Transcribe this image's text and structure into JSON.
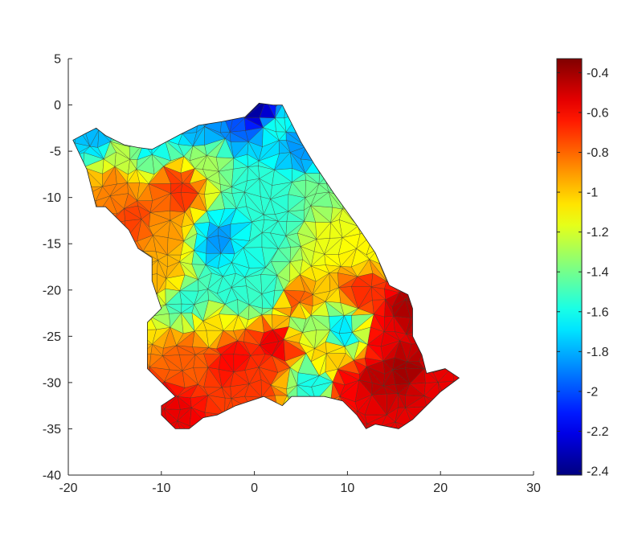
{
  "chart_data": {
    "type": "heatmap",
    "subtype": "triangulated-surface",
    "title": "",
    "xlabel": "",
    "ylabel": "",
    "xlim": [
      -20,
      30
    ],
    "ylim": [
      -40,
      5
    ],
    "x_ticks": [
      -20,
      -10,
      0,
      10,
      20,
      30
    ],
    "y_ticks": [
      5,
      0,
      -5,
      -10,
      -15,
      -20,
      -25,
      -30,
      -35,
      -40
    ],
    "x_tick_labels": [
      "-20",
      "-10",
      "0",
      "10",
      "20",
      "30"
    ],
    "y_tick_labels": [
      "5",
      "0",
      "-5",
      "-10",
      "-15",
      "-20",
      "-25",
      "-30",
      "-35",
      "-40"
    ],
    "grid": false,
    "colormap": "jet",
    "colorbar": {
      "range": [
        -2.42,
        -0.33
      ],
      "ticks": [
        -0.4,
        -0.6,
        -0.8,
        -1,
        -1.2,
        -1.4,
        -1.6,
        -1.8,
        -2,
        -2.2,
        -2.4
      ],
      "tick_labels": [
        "-0.4",
        "-0.6",
        "-0.8",
        "-1",
        "-1.2",
        "-1.4",
        "-1.6",
        "-1.8",
        "-2",
        "-2.2",
        "-2.4"
      ]
    },
    "boundary": [
      [
        -19.5,
        -3.8
      ],
      [
        -18,
        -3
      ],
      [
        -17,
        -2.5
      ],
      [
        -16,
        -3.3
      ],
      [
        -14,
        -4.3
      ],
      [
        -12.5,
        -4.6
      ],
      [
        -11,
        -4.8
      ],
      [
        -8,
        -3.2
      ],
      [
        -6,
        -2.2
      ],
      [
        -3.5,
        -1.8
      ],
      [
        -1,
        -1.3
      ],
      [
        0.5,
        0.2
      ],
      [
        2,
        0
      ],
      [
        3,
        0
      ],
      [
        4,
        -2
      ],
      [
        5,
        -4
      ],
      [
        6.5,
        -6.5
      ],
      [
        8.5,
        -9.5
      ],
      [
        11,
        -13
      ],
      [
        13,
        -16
      ],
      [
        14.5,
        -19.5
      ],
      [
        16.5,
        -20.5
      ],
      [
        17,
        -22
      ],
      [
        17,
        -25
      ],
      [
        18,
        -27
      ],
      [
        18.5,
        -29
      ],
      [
        20.5,
        -28.5
      ],
      [
        22,
        -29.5
      ],
      [
        20,
        -31
      ],
      [
        18.5,
        -32.5
      ],
      [
        17,
        -34
      ],
      [
        15.5,
        -35
      ],
      [
        13,
        -34.5
      ],
      [
        12,
        -35
      ],
      [
        11,
        -33.5
      ],
      [
        9.5,
        -32
      ],
      [
        7.5,
        -31.5
      ],
      [
        5.5,
        -31.5
      ],
      [
        4,
        -31.5
      ],
      [
        3,
        -32.5
      ],
      [
        1,
        -31.5
      ],
      [
        -2,
        -32.5
      ],
      [
        -4,
        -33.5
      ],
      [
        -5.5,
        -33.8
      ],
      [
        -7,
        -35
      ],
      [
        -8.5,
        -35
      ],
      [
        -10,
        -33.5
      ],
      [
        -10,
        -32.5
      ],
      [
        -8.5,
        -31.5
      ],
      [
        -10,
        -30
      ],
      [
        -11.5,
        -28.5
      ],
      [
        -11.5,
        -25.5
      ],
      [
        -11.5,
        -23.5
      ],
      [
        -10,
        -22
      ],
      [
        -11,
        -19
      ],
      [
        -11,
        -17.5
      ],
      [
        -11,
        -16.5
      ],
      [
        -12.5,
        -15.5
      ],
      [
        -13.5,
        -13.5
      ],
      [
        -15,
        -12
      ],
      [
        -16,
        -11
      ],
      [
        -17,
        -11
      ],
      [
        -17.5,
        -9
      ],
      [
        -18,
        -7
      ]
    ],
    "value_sources": [
      {
        "x": -17,
        "y": -3.2,
        "value": -1.78
      },
      {
        "x": -11.5,
        "y": -4.2,
        "value": -1.65
      },
      {
        "x": -6,
        "y": -2.5,
        "value": -1.8
      },
      {
        "x": -3.5,
        "y": -2.2,
        "value": -1.85
      },
      {
        "x": -2.5,
        "y": -1.8,
        "value": -2.0
      },
      {
        "x": 0.3,
        "y": -0.4,
        "value": -2.35
      },
      {
        "x": 2.5,
        "y": -2.3,
        "value": -1.6
      },
      {
        "x": 5,
        "y": -4.5,
        "value": -1.85
      },
      {
        "x": 3,
        "y": -11,
        "value": -1.55
      },
      {
        "x": 0.5,
        "y": -8.5,
        "value": -1.55
      },
      {
        "x": -3.5,
        "y": -14.8,
        "value": -1.85
      },
      {
        "x": -1.5,
        "y": -16.5,
        "value": -1.6
      },
      {
        "x": 1,
        "y": -13.8,
        "value": -1.55
      },
      {
        "x": -2.5,
        "y": -20,
        "value": -1.55
      },
      {
        "x": -7,
        "y": -21.5,
        "value": -1.55
      },
      {
        "x": 1.5,
        "y": -20.5,
        "value": -1.55
      },
      {
        "x": 9.5,
        "y": -24.5,
        "value": -1.68
      },
      {
        "x": 6.5,
        "y": -30,
        "value": -1.6
      },
      {
        "x": 5,
        "y": -23.5,
        "value": -1.35
      },
      {
        "x": 6,
        "y": -10,
        "value": -1.4
      },
      {
        "x": -8,
        "y": -9,
        "value": -0.68
      },
      {
        "x": -13,
        "y": -12.5,
        "value": -0.72
      },
      {
        "x": -15,
        "y": -9,
        "value": -0.85
      },
      {
        "x": -10,
        "y": -14,
        "value": -0.9
      },
      {
        "x": 4.5,
        "y": -21.5,
        "value": -0.75
      },
      {
        "x": -10,
        "y": -18,
        "value": -0.95
      },
      {
        "x": -9,
        "y": -33.5,
        "value": -0.55
      },
      {
        "x": -7,
        "y": -27,
        "value": -0.78
      },
      {
        "x": -2.5,
        "y": -27.5,
        "value": -0.6
      },
      {
        "x": 2.5,
        "y": -25.5,
        "value": -0.55
      },
      {
        "x": 0,
        "y": -30,
        "value": -0.7
      },
      {
        "x": 10,
        "y": -30.5,
        "value": -0.58
      },
      {
        "x": 13,
        "y": -30,
        "value": -0.45
      },
      {
        "x": 16,
        "y": -28.5,
        "value": -0.4
      },
      {
        "x": 16.5,
        "y": -22,
        "value": -0.42
      },
      {
        "x": 14.5,
        "y": -25,
        "value": -0.55
      },
      {
        "x": 19.5,
        "y": -30,
        "value": -0.55
      },
      {
        "x": 12.5,
        "y": -34.5,
        "value": -0.55
      },
      {
        "x": 12,
        "y": -20,
        "value": -0.68
      },
      {
        "x": 12,
        "y": -16,
        "value": -1.1
      },
      {
        "x": 8,
        "y": -14,
        "value": -1.15
      },
      {
        "x": -5,
        "y": -24,
        "value": -1.05
      },
      {
        "x": 8,
        "y": -27,
        "value": -1.0
      },
      {
        "x": -5,
        "y": -6,
        "value": -1.3
      },
      {
        "x": -14,
        "y": -5.5,
        "value": -1.25
      }
    ]
  }
}
